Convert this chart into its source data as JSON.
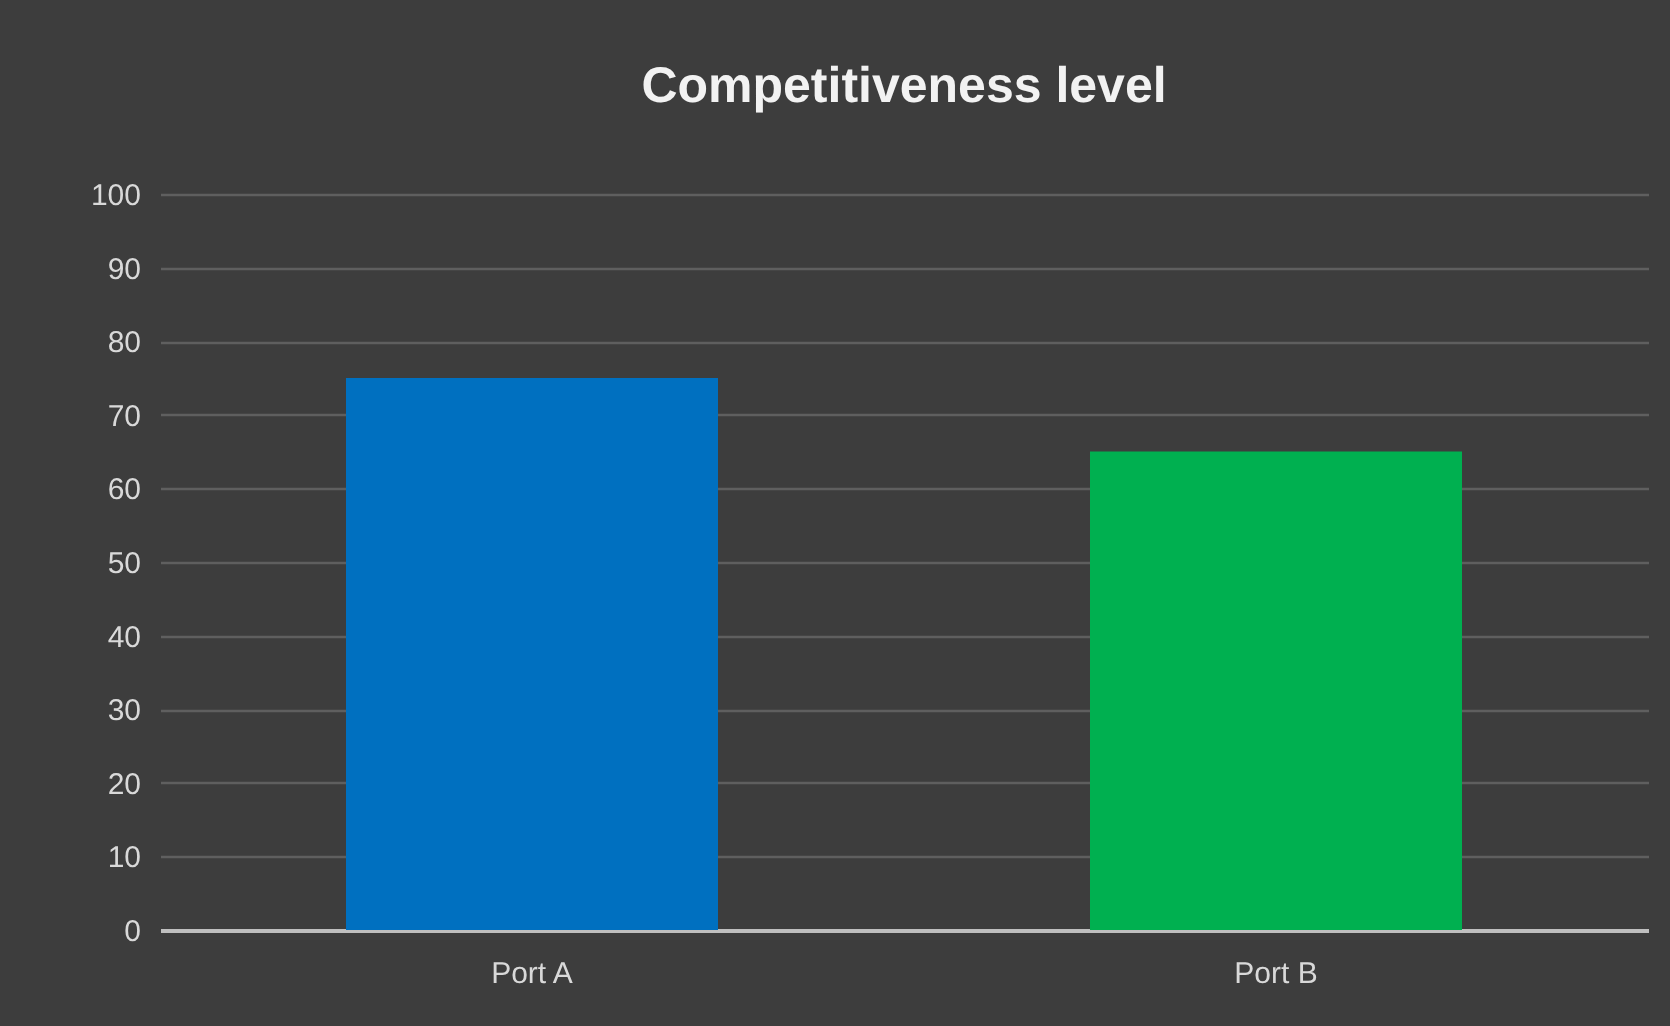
{
  "chart_data": {
    "type": "bar",
    "title": "Competitiveness level",
    "categories": [
      "Port A",
      "Port B"
    ],
    "values": [
      75,
      65
    ],
    "colors": [
      "#0070c0",
      "#00b050"
    ],
    "ylim": [
      0,
      100
    ],
    "yticks": [
      0,
      10,
      20,
      30,
      40,
      50,
      60,
      70,
      80,
      90,
      100
    ],
    "grid": "y"
  }
}
